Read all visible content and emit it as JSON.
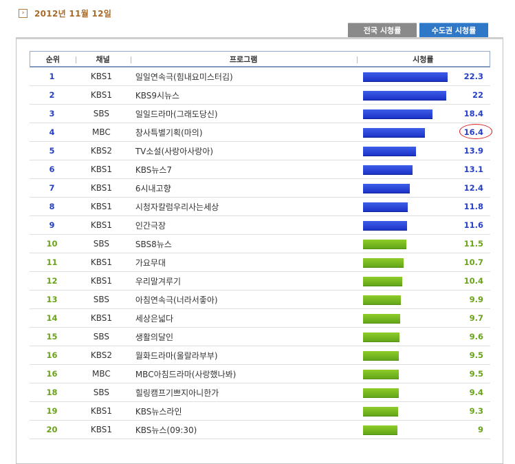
{
  "date": "2012년 11월 12일",
  "tabs": [
    {
      "label": "전국 시청률",
      "active": false
    },
    {
      "label": "수도권 시청률",
      "active": true
    }
  ],
  "columns": [
    "순위",
    "채널",
    "프로그램",
    "시청률"
  ],
  "max_rating": 22.3,
  "rows": [
    {
      "rank": "1",
      "channel": "KBS1",
      "program": "일일연속극(힘내요미스터김)",
      "rating": "22.3",
      "color": "blue"
    },
    {
      "rank": "2",
      "channel": "KBS1",
      "program": "KBS9시뉴스",
      "rating": "22",
      "color": "blue"
    },
    {
      "rank": "3",
      "channel": "SBS",
      "program": "일일드라마(그래도당신)",
      "rating": "18.4",
      "color": "blue"
    },
    {
      "rank": "4",
      "channel": "MBC",
      "program": "창사특별기획(마의)",
      "rating": "16.4",
      "color": "blue",
      "circled": true
    },
    {
      "rank": "5",
      "channel": "KBS2",
      "program": "TV소설(사랑아사랑아)",
      "rating": "13.9",
      "color": "blue"
    },
    {
      "rank": "6",
      "channel": "KBS1",
      "program": "KBS뉴스7",
      "rating": "13.1",
      "color": "blue"
    },
    {
      "rank": "7",
      "channel": "KBS1",
      "program": "6시내고향",
      "rating": "12.4",
      "color": "blue"
    },
    {
      "rank": "8",
      "channel": "KBS1",
      "program": "시청자칼럼우리사는세상",
      "rating": "11.8",
      "color": "blue"
    },
    {
      "rank": "9",
      "channel": "KBS1",
      "program": "인간극장",
      "rating": "11.6",
      "color": "blue"
    },
    {
      "rank": "10",
      "channel": "SBS",
      "program": "SBS8뉴스",
      "rating": "11.5",
      "color": "green"
    },
    {
      "rank": "11",
      "channel": "KBS1",
      "program": "가요무대",
      "rating": "10.7",
      "color": "green"
    },
    {
      "rank": "12",
      "channel": "KBS1",
      "program": "우리말겨루기",
      "rating": "10.4",
      "color": "green"
    },
    {
      "rank": "13",
      "channel": "SBS",
      "program": "아침연속극(너라서좋아)",
      "rating": "9.9",
      "color": "green"
    },
    {
      "rank": "14",
      "channel": "KBS1",
      "program": "세상은넓다",
      "rating": "9.7",
      "color": "green"
    },
    {
      "rank": "15",
      "channel": "SBS",
      "program": "생활의달인",
      "rating": "9.6",
      "color": "green"
    },
    {
      "rank": "16",
      "channel": "KBS2",
      "program": "월화드라마(울랄라부부)",
      "rating": "9.5",
      "color": "green"
    },
    {
      "rank": "16",
      "channel": "MBC",
      "program": "MBC아침드라마(사랑했나봐)",
      "rating": "9.5",
      "color": "green"
    },
    {
      "rank": "18",
      "channel": "SBS",
      "program": "힐링캠프기쁘지아니한가",
      "rating": "9.4",
      "color": "green"
    },
    {
      "rank": "19",
      "channel": "KBS1",
      "program": "KBS뉴스라인",
      "rating": "9.3",
      "color": "green"
    },
    {
      "rank": "20",
      "channel": "KBS1",
      "program": "KBS뉴스(09:30)",
      "rating": "9",
      "color": "green"
    }
  ]
}
